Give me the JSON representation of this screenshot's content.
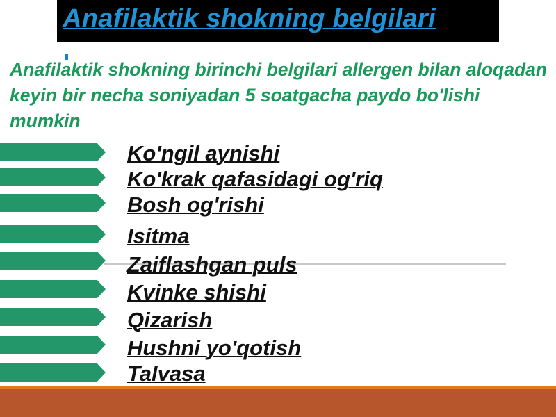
{
  "slide": {
    "title": "Anafilaktik shokning belgilari",
    "title_mark": ":",
    "intro": "Anafilaktik shokning birinchi belgilari allergen bilan aloqadan keyin bir necha soniyadan 5 soatgacha paydo bo'lishi mumkin",
    "symptoms": [
      "Ko'ngil aynishi",
      "Ko'krak qafasidagi og'riq",
      "Bosh og'rishi",
      "Isitma",
      "Zaiflashgan puls",
      "Kvinke shishi",
      "Qizarish",
      "Hushni yo'qotish",
      "Talvasa"
    ],
    "colors": {
      "title_bg": "#000000",
      "title_text": "#1f93d6",
      "intro_text": "#1a9a5a",
      "arrow": "#23966a",
      "footer": "#b7552c",
      "footer_line": "#e27a1c"
    }
  }
}
